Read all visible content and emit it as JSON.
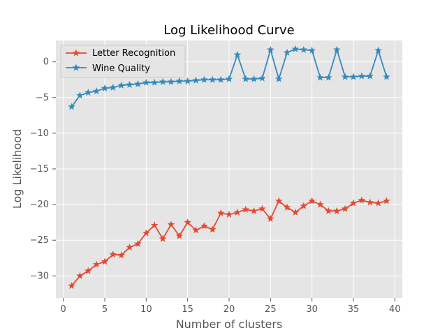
{
  "chart_data": {
    "type": "line",
    "title": "Log Likelihood Curve",
    "xlabel": "Number of clusters",
    "ylabel": "Log Likelihood",
    "xlim": [
      -0.9,
      40.9
    ],
    "ylim": [
      -33.1,
      3.0
    ],
    "xticks": [
      0,
      5,
      10,
      15,
      20,
      25,
      30,
      35,
      40
    ],
    "yticks": [
      0,
      -5,
      -10,
      -15,
      -20,
      -25,
      -30
    ],
    "grid": true,
    "legend_position": "top-left",
    "x": [
      1,
      2,
      3,
      4,
      5,
      6,
      7,
      8,
      9,
      10,
      11,
      12,
      13,
      14,
      15,
      16,
      17,
      18,
      19,
      20,
      21,
      22,
      23,
      24,
      25,
      26,
      27,
      28,
      29,
      30,
      31,
      32,
      33,
      34,
      35,
      36,
      37,
      38,
      39
    ],
    "series": [
      {
        "name": "Letter Recognition",
        "color": "#e24a33",
        "marker": "star",
        "values": [
          -31.4,
          -30.0,
          -29.3,
          -28.4,
          -28.0,
          -27.0,
          -27.1,
          -26.0,
          -25.5,
          -24.0,
          -22.9,
          -24.8,
          -22.8,
          -24.4,
          -22.5,
          -23.6,
          -23.0,
          -23.5,
          -21.2,
          -21.4,
          -21.1,
          -20.7,
          -20.9,
          -20.6,
          -22.0,
          -19.5,
          -20.4,
          -21.1,
          -20.2,
          -19.5,
          -20.0,
          -20.9,
          -20.9,
          -20.6,
          -19.8,
          -19.4,
          -19.7,
          -19.8,
          -19.5
        ]
      },
      {
        "name": "Wine Quality",
        "color": "#348abd",
        "marker": "star",
        "values": [
          -6.3,
          -4.7,
          -4.3,
          -4.1,
          -3.7,
          -3.6,
          -3.3,
          -3.2,
          -3.1,
          -2.9,
          -2.9,
          -2.8,
          -2.8,
          -2.7,
          -2.7,
          -2.6,
          -2.5,
          -2.5,
          -2.5,
          -2.4,
          1.0,
          -2.4,
          -2.4,
          -2.3,
          1.7,
          -2.4,
          1.3,
          1.8,
          1.7,
          1.6,
          -2.2,
          -2.2,
          1.7,
          -2.1,
          -2.1,
          -2.0,
          -2.0,
          1.6,
          -2.1
        ]
      }
    ]
  }
}
